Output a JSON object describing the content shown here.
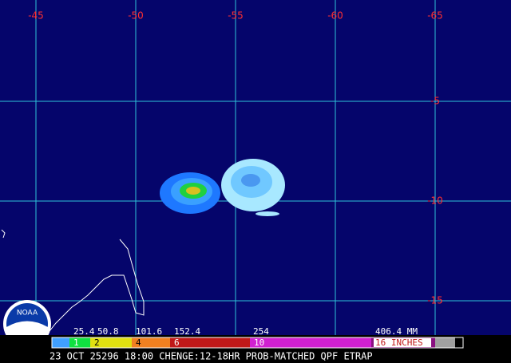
{
  "map": {
    "longitude_labels": [
      "-45",
      "-50",
      "-55",
      "-60",
      "-65"
    ],
    "latitude_labels": [
      "-5",
      "-10",
      "-15"
    ]
  },
  "legend": {
    "mm_labels": [
      "25.4",
      "50.8",
      "101.6",
      "152.4",
      "254",
      "406.4 MM"
    ],
    "inch_labels": [
      "1",
      "2",
      "4",
      "6",
      "10",
      "16 INCHES"
    ]
  },
  "footer": {
    "caption": "23 OCT 25296 18:00 CHENGE:12-18HR PROB-MATCHED QPF ETRAP"
  },
  "logo": {
    "text": "NOAA"
  }
}
